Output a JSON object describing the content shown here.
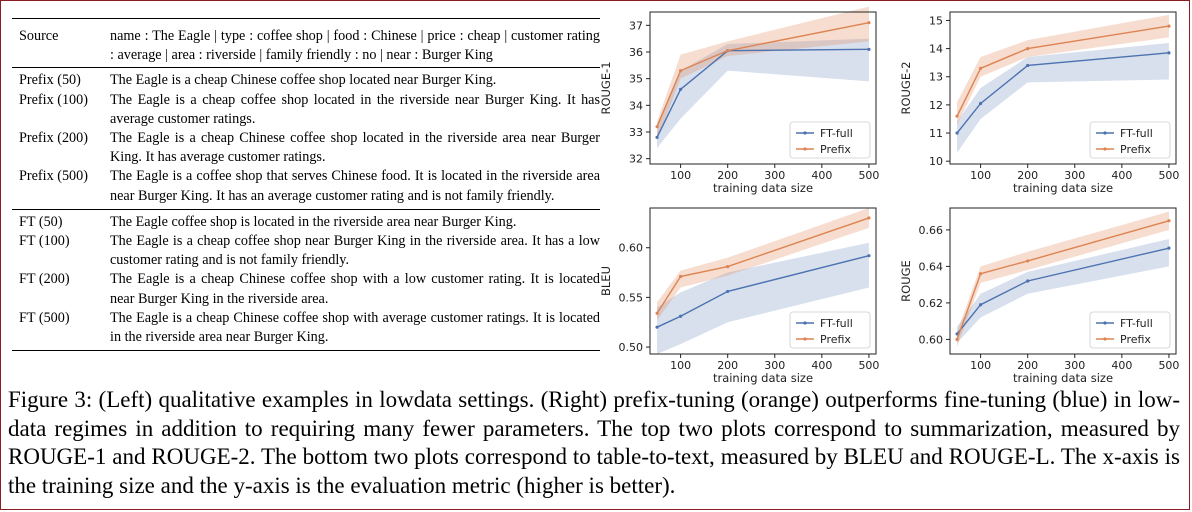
{
  "table": {
    "source": {
      "label": "Source",
      "text": "name : The Eagle | type : coffee shop | food : Chinese | price : cheap | customer rating : average | area : riverside | family friendly : no | near : Burger King"
    },
    "prefix_rows": [
      {
        "label": "Prefix (50)",
        "text": "The Eagle is a cheap Chinese coffee shop located near Burger King."
      },
      {
        "label": "Prefix (100)",
        "text": "The Eagle is a cheap coffee shop located in the riverside near Burger King. It has average customer ratings."
      },
      {
        "label": "Prefix (200)",
        "text": "The Eagle is a cheap Chinese coffee shop located in the riverside area near Burger King. It has average customer ratings."
      },
      {
        "label": "Prefix (500)",
        "text": "The Eagle is a coffee shop that serves Chinese food. It is located in the riverside area near Burger King. It has an average customer rating and is not family friendly."
      }
    ],
    "ft_rows": [
      {
        "label": "FT (50)",
        "text": "The Eagle coffee shop is located in the riverside area near Burger King."
      },
      {
        "label": "FT (100)",
        "text": "The Eagle is a cheap coffee shop near Burger King in the riverside area. It has a low customer rating and is not family friendly."
      },
      {
        "label": "FT (200)",
        "text": "The Eagle is a cheap Chinese coffee shop with a low customer rating. It is located near Burger King in the riverside area."
      },
      {
        "label": "FT (500)",
        "text": "The Eagle is a cheap Chinese coffee shop with average customer ratings. It is located in the riverside area near Burger King."
      }
    ]
  },
  "caption": "Figure 3:  (Left) qualitative examples in lowdata settings. (Right) prefix-tuning (orange) outperforms fine-tuning (blue) in low-data regimes in addition to requiring many fewer parameters. The top two plots correspond to summarization, measured by ROUGE-1 and ROUGE-2. The bottom two plots correspond to table-to-text, measured by BLEU and ROUGE-L. The x-axis is the training size and the y-axis is the evaluation metric (higher is better).",
  "colors": {
    "ft": "#4c72b0",
    "prefix": "#dd8452"
  },
  "chart_data": [
    {
      "type": "line",
      "xlabel": "training data size",
      "ylabel": "ROUGE-1",
      "x": [
        50,
        100,
        200,
        500
      ],
      "xticks": [
        100,
        200,
        300,
        400,
        500
      ],
      "yticks": [
        32,
        33,
        34,
        35,
        36,
        37
      ],
      "xlim": [
        35,
        515
      ],
      "ylim": [
        31.8,
        37.5
      ],
      "legend": "lower right",
      "grid": false,
      "series": [
        {
          "name": "FT-full",
          "values": [
            32.8,
            34.6,
            36.05,
            36.1
          ],
          "band_low": [
            32.4,
            33.5,
            35.3,
            34.9
          ],
          "band_high": [
            33.3,
            35.3,
            36.3,
            36.5
          ]
        },
        {
          "name": "Prefix",
          "values": [
            33.2,
            35.3,
            36.05,
            37.1
          ],
          "band_low": [
            32.7,
            35.0,
            35.85,
            36.4
          ],
          "band_high": [
            33.4,
            35.9,
            36.4,
            37.7
          ]
        }
      ]
    },
    {
      "type": "line",
      "xlabel": "training data size",
      "ylabel": "ROUGE-2",
      "x": [
        50,
        100,
        200,
        500
      ],
      "xticks": [
        100,
        200,
        300,
        400,
        500
      ],
      "yticks": [
        10,
        11,
        12,
        13,
        14,
        15
      ],
      "xlim": [
        35,
        515
      ],
      "ylim": [
        9.9,
        15.3
      ],
      "legend": "lower right",
      "grid": false,
      "series": [
        {
          "name": "FT-full",
          "values": [
            11.0,
            12.05,
            13.4,
            13.85
          ],
          "band_low": [
            10.3,
            11.5,
            12.8,
            12.9
          ],
          "band_high": [
            11.4,
            12.6,
            13.7,
            14.2
          ]
        },
        {
          "name": "Prefix",
          "values": [
            11.6,
            13.3,
            14.0,
            14.8
          ],
          "band_low": [
            11.3,
            13.0,
            13.7,
            14.4
          ],
          "band_high": [
            12.1,
            13.7,
            14.3,
            15.2
          ]
        }
      ]
    },
    {
      "type": "line",
      "xlabel": "training data size",
      "ylabel": "BLEU",
      "x": [
        50,
        100,
        200,
        500
      ],
      "xticks": [
        100,
        200,
        300,
        400,
        500
      ],
      "yticks": [
        0.5,
        0.55,
        0.6
      ],
      "xlim": [
        35,
        515
      ],
      "ylim": [
        0.493,
        0.64
      ],
      "legend": "lower right",
      "grid": false,
      "series": [
        {
          "name": "FT-full",
          "values": [
            0.52,
            0.531,
            0.556,
            0.592
          ],
          "band_low": [
            0.493,
            0.503,
            0.525,
            0.56
          ],
          "band_high": [
            0.54,
            0.555,
            0.575,
            0.605
          ]
        },
        {
          "name": "Prefix",
          "values": [
            0.534,
            0.571,
            0.581,
            0.63
          ],
          "band_low": [
            0.527,
            0.56,
            0.572,
            0.62
          ],
          "band_high": [
            0.545,
            0.577,
            0.59,
            0.64
          ]
        }
      ]
    },
    {
      "type": "line",
      "xlabel": "training data size",
      "ylabel": "ROUGE",
      "x": [
        50,
        100,
        200,
        500
      ],
      "xticks": [
        100,
        200,
        300,
        400,
        500
      ],
      "yticks": [
        0.6,
        0.62,
        0.64,
        0.66
      ],
      "xlim": [
        35,
        515
      ],
      "ylim": [
        0.592,
        0.672
      ],
      "legend": "lower right",
      "grid": false,
      "series": [
        {
          "name": "FT-full",
          "values": [
            0.603,
            0.619,
            0.632,
            0.65
          ],
          "band_low": [
            0.598,
            0.612,
            0.625,
            0.64
          ],
          "band_high": [
            0.607,
            0.625,
            0.637,
            0.655
          ]
        },
        {
          "name": "Prefix",
          "values": [
            0.6,
            0.636,
            0.643,
            0.665
          ],
          "band_low": [
            0.596,
            0.631,
            0.638,
            0.66
          ],
          "band_high": [
            0.604,
            0.64,
            0.648,
            0.67
          ]
        }
      ]
    }
  ]
}
